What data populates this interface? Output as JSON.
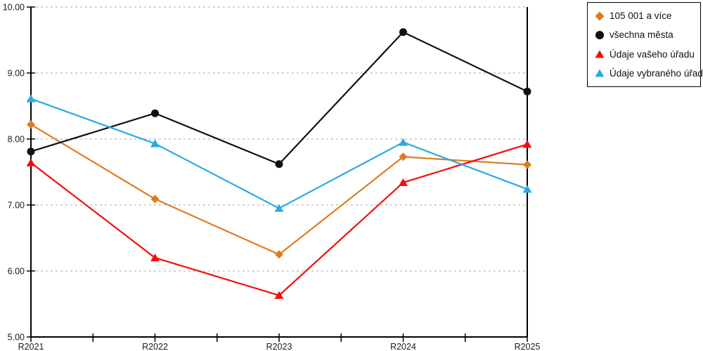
{
  "chart_data": {
    "type": "line",
    "title": "",
    "xlabel": "",
    "ylabel": "",
    "categories": [
      "R2021",
      "R2022",
      "R2023",
      "R2024",
      "R2025"
    ],
    "series": [
      {
        "name": "105 001 a více",
        "color": "#e07a1e",
        "marker": "diamond",
        "values": [
          8.22,
          7.09,
          6.25,
          7.73,
          7.61
        ]
      },
      {
        "name": "všechna města",
        "color": "#111111",
        "marker": "circle",
        "values": [
          7.81,
          8.39,
          7.62,
          9.62,
          8.72
        ]
      },
      {
        "name": "Údaje vašeho úřadu",
        "color": "#f20d0d",
        "marker": "triangle",
        "values": [
          7.64,
          6.2,
          5.63,
          7.34,
          7.92
        ]
      },
      {
        "name": "Údaje vybraného úřadu",
        "color": "#29abe2",
        "marker": "triangle",
        "values": [
          8.61,
          7.93,
          6.95,
          7.95,
          7.24
        ]
      }
    ],
    "ylim": [
      5,
      10
    ],
    "ytick_labels": [
      "5.00",
      "6.00",
      "7.00",
      "8.00",
      "9.00",
      "10.00"
    ],
    "xtick_labels": [
      "R2021",
      "R2022",
      "R2023",
      "R2024",
      "R2025"
    ],
    "grid": {
      "horizontal": "dashed",
      "color": "#b8b8b8",
      "at": [
        6,
        7,
        8,
        9,
        10
      ]
    },
    "axis_color": "#000000",
    "legend_position": "top-right",
    "minor_x_ticks": "midpoints"
  }
}
